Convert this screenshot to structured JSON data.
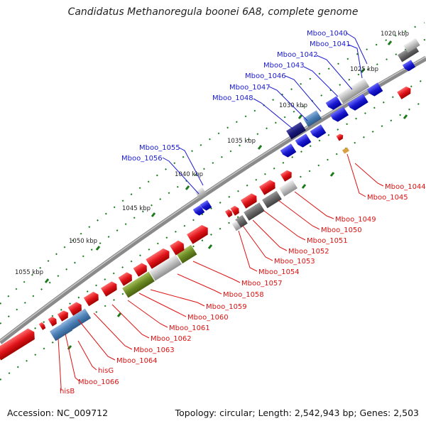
{
  "title": "Candidatus Methanoregula boonei 6A8, complete genome",
  "footer": {
    "accession": "Accession: NC_009712",
    "summary": "Topology: circular; Length: 2,542,943 bp; Genes: 2,503"
  },
  "colors": {
    "forward_gene": "#e0141a",
    "reverse_gene": "#1a1ad0",
    "label_blue": "#1a1ad0",
    "label_red": "#dd1111",
    "backbone": "#8a8a8a",
    "tick_dot": "#1a7a1a",
    "highlight_blue": "#4a7fb5",
    "highlight_navy": "#1a1a7a",
    "highlight_green": "#6a8a22",
    "highlight_gray": "#bbbbbb"
  },
  "scale_labels": [
    "1020 kbp",
    "1025 kbp",
    "1030 kbp",
    "1035 kbp",
    "1040 kbp",
    "1045 kbp",
    "1050 kbp",
    "1055 kbp"
  ],
  "upper_labels": [
    "Mboo_1040",
    "Mboo_1041",
    "Mboo_1042",
    "Mboo_1043",
    "Mboo_1046",
    "Mboo_1047",
    "Mboo_1048",
    "Mboo_1055",
    "Mboo_1056"
  ],
  "right_labels": [
    "Mboo_1044",
    "Mboo_1045"
  ],
  "lower_labels": [
    "Mboo_1049",
    "Mboo_1050",
    "Mboo_1051",
    "Mboo_1052",
    "Mboo_1053",
    "Mboo_1054",
    "Mboo_1057",
    "Mboo_1058",
    "Mboo_1059",
    "Mboo_1060",
    "Mboo_1061",
    "Mboo_1062",
    "Mboo_1063",
    "Mboo_1064",
    "hisG",
    "Mboo_1066",
    "hisB"
  ]
}
